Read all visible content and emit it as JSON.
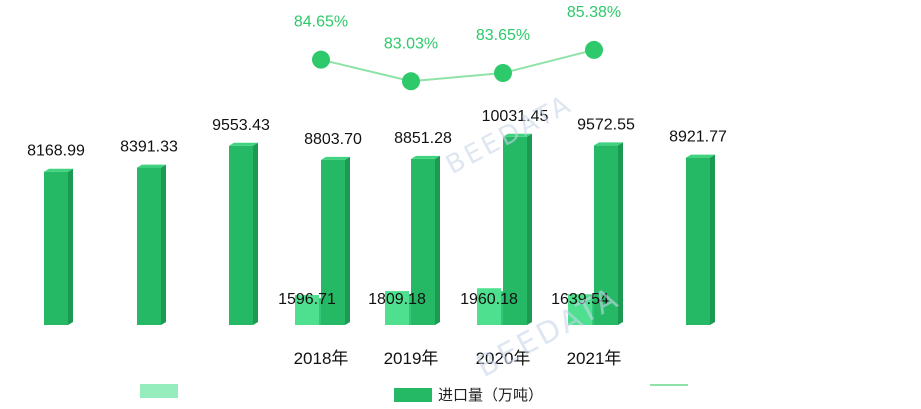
{
  "chart_data": {
    "type": "bar",
    "categories": [
      "",
      "",
      "",
      "2018年",
      "2019年",
      "2020年",
      "2021年",
      "",
      "",
      ""
    ],
    "series": [
      {
        "name": "",
        "values": [
          null,
          null,
          null,
          1596.71,
          1809.18,
          1960.18,
          1639.54,
          null,
          null,
          null
        ],
        "color": "#4ee08f"
      },
      {
        "name": "进口量（万吨）",
        "values": [
          8168.99,
          8391.33,
          9553.43,
          8803.7,
          8851.28,
          10031.45,
          9572.55,
          8921.77,
          null,
          null
        ],
        "color": "#25b865"
      },
      {
        "name": "",
        "type": "line",
        "values": [
          null,
          null,
          null,
          84.65,
          83.03,
          83.65,
          85.38,
          null,
          null,
          null
        ],
        "labels": [
          "",
          "",
          "",
          "84.65%",
          "83.03%",
          "83.65%",
          "85.38%",
          "",
          "",
          ""
        ],
        "color": "#2ec96b"
      }
    ],
    "bar_labels": [
      "8168.99",
      "8391.33",
      "9553.43",
      "8803.70",
      "8851.28",
      "10031.45",
      "9572.55",
      "8921.77",
      "",
      ""
    ],
    "small_bar_labels": [
      "",
      "",
      "",
      "1596.71",
      "1809.18",
      "1960.18",
      "1639.54",
      "",
      "",
      ""
    ],
    "legend": {
      "position": "bottom",
      "entries": [
        "",
        "进口量（万吨）",
        ""
      ]
    },
    "grid": false
  },
  "watermark": {
    "text": "BEEDATA"
  }
}
